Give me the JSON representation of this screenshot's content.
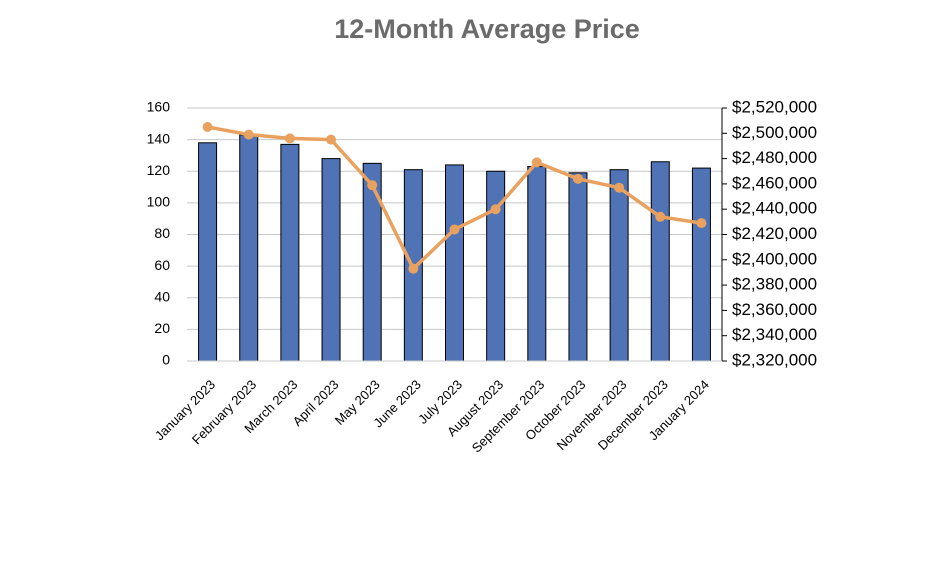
{
  "chart_data": {
    "type": "combo",
    "title": "12-Month Average Price",
    "categories": [
      "January 2023",
      "February 2023",
      "March 2023",
      "April 2023",
      "May 2023",
      "June 2023",
      "July 2023",
      "August 2023",
      "September 2023",
      "October 2023",
      "November 2023",
      "December 2023",
      "January 2024"
    ],
    "series": [
      {
        "type": "bar",
        "color": "#4f73b4",
        "values": [
          138,
          143,
          137,
          128,
          125,
          121,
          124,
          120,
          123,
          119,
          121,
          126,
          122
        ]
      },
      {
        "type": "line",
        "axis": "y2",
        "color": "#e9a15f",
        "values": [
          2505000,
          2499000,
          2496000,
          2495000,
          2459000,
          2393000,
          2424000,
          2440000,
          2477000,
          2464000,
          2457000,
          2434000,
          2429000
        ]
      }
    ],
    "ylim": [
      0,
      160
    ],
    "yticks": [
      0,
      20,
      40,
      60,
      80,
      100,
      120,
      140,
      160
    ],
    "y2lim": [
      2320000,
      2520000
    ],
    "y2ticks": [
      {
        "value": 2320000,
        "label": "$2,320,000"
      },
      {
        "value": 2340000,
        "label": "$2,340,000"
      },
      {
        "value": 2360000,
        "label": "$2,360,000"
      },
      {
        "value": 2380000,
        "label": "$2,380,000"
      },
      {
        "value": 2400000,
        "label": "$2,400,000"
      },
      {
        "value": 2420000,
        "label": "$2,420,000"
      },
      {
        "value": 2440000,
        "label": "$2,440,000"
      },
      {
        "value": 2460000,
        "label": "$2,460,000"
      },
      {
        "value": 2480000,
        "label": "$2,480,000"
      },
      {
        "value": 2500000,
        "label": "$2,500,000"
      },
      {
        "value": 2520000,
        "label": "$2,520,000"
      }
    ],
    "grid": true
  }
}
